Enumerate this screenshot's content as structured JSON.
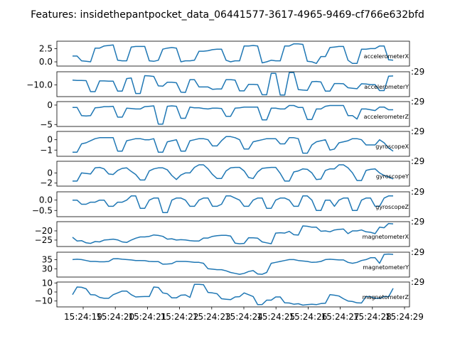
{
  "title": "Features: insidethepantpocket_data_06441577-3617-4965-9469-cf766e632bfd",
  "chart_data": {
    "type": "line",
    "x_tick_labels": [
      "15:24:19",
      "15:24:20",
      "15:24:21",
      "15:24:22",
      "15:24:23",
      "15:24:24",
      "15:24:25",
      "15:24:26",
      "15:24:27",
      "15:24:28",
      "15:24:29"
    ],
    "panels": [
      {
        "name": "accelerometerX",
        "ylim": [
          -0.8,
          3.9
        ],
        "yticks": [
          0.0,
          2.5
        ],
        "yticklabels": [
          "0.0",
          "2.5"
        ],
        "values": [
          1.1,
          1.1,
          0.2,
          0.1,
          0.0,
          2.6,
          2.6,
          3.0,
          3.1,
          3.2,
          0.3,
          0.2,
          0.2,
          2.8,
          2.9,
          2.9,
          2.9,
          0.2,
          0.1,
          0.3,
          2.4,
          2.6,
          2.7,
          2.6,
          0.0,
          0.2,
          0.2,
          0.3,
          2.0,
          2.0,
          2.1,
          2.3,
          2.4,
          2.4,
          0.3,
          0.0,
          0.2,
          0.2,
          3.0,
          3.0,
          3.1,
          3.0,
          -0.2,
          0.0,
          0.3,
          0.2,
          0.2,
          3.0,
          3.0,
          3.4,
          3.4,
          3.3,
          0.1,
          0.0,
          -0.3,
          1.0,
          1.0,
          2.7,
          2.8,
          2.9,
          2.9,
          0.3,
          -0.3,
          -0.3,
          2.4,
          2.4,
          2.5,
          2.5,
          3.0,
          3.0,
          0.4,
          0.3
        ]
      },
      {
        "name": "accelerometerY",
        "ylim": [
          -14.5,
          -5.0
        ],
        "yticks": [
          -10.0
        ],
        "yticklabels": [
          "−10.0"
        ],
        "values": [
          -8.2,
          -8.3,
          -8.3,
          -8.4,
          -12.6,
          -12.6,
          -8.5,
          -8.5,
          -8.6,
          -8.6,
          -12.4,
          -12.4,
          -7.6,
          -7.4,
          -13.3,
          -13.3,
          -6.5,
          -6.6,
          -6.8,
          -10.4,
          -10.5,
          -9.0,
          -9.0,
          -9.2,
          -12.8,
          -12.9,
          -8.0,
          -8.0,
          -10.8,
          -10.8,
          -10.8,
          -11.7,
          -11.6,
          -11.6,
          -8.0,
          -8.0,
          -8.2,
          -12.3,
          -12.3,
          -9.8,
          -9.8,
          -9.9,
          -13.8,
          -13.8,
          -5.6,
          -5.6,
          -13.9,
          -13.9,
          -5.3,
          -5.3,
          -11.8,
          -12.0,
          -12.1,
          -8.8,
          -8.7,
          -8.9,
          -12.4,
          -12.4,
          -9.5,
          -9.5,
          -9.6,
          -11.1,
          -11.3,
          -11.5,
          -9.6,
          -9.7,
          -9.9,
          -9.9,
          -12.2,
          -12.2,
          -6.7,
          -6.6
        ]
      },
      {
        "name": "accelerometerZ",
        "ylim": [
          -5.5,
          0.9
        ],
        "yticks": [
          0,
          -5
        ],
        "yticklabels": [
          "0",
          "−5"
        ],
        "values": [
          -0.6,
          -0.6,
          -2.7,
          -2.8,
          -2.7,
          -0.7,
          -0.6,
          -0.4,
          -0.4,
          -0.3,
          -3.1,
          -3.1,
          -0.8,
          -0.9,
          -1.0,
          -1.0,
          -0.4,
          -0.3,
          -0.2,
          -4.9,
          -4.9,
          -0.3,
          -0.2,
          -0.3,
          -3.4,
          -3.4,
          -0.5,
          -0.7,
          -0.7,
          -0.9,
          -1.0,
          -0.8,
          -0.8,
          -0.9,
          -2.9,
          -2.9,
          -0.8,
          -0.7,
          -0.5,
          -0.5,
          -0.5,
          -0.5,
          -3.8,
          -3.8,
          -0.8,
          -0.8,
          -1.0,
          -1.0,
          -0.1,
          -0.1,
          -0.6,
          -0.6,
          -3.7,
          -3.7,
          -1.0,
          -1.0,
          -0.3,
          -0.1,
          -0.1,
          -0.1,
          -0.1,
          -2.7,
          -2.7,
          -3.6,
          -1.0,
          -1.0,
          -1.2,
          -1.4,
          -0.5,
          -0.5,
          -1.2,
          -1.2
        ]
      },
      {
        "name": "gyroscopeX",
        "ylim": [
          -1.6,
          0.8
        ],
        "yticks": [
          0,
          -1
        ],
        "yticklabels": [
          "0",
          "−1"
        ],
        "values": [
          -1.2,
          -1.2,
          -0.4,
          -0.3,
          -0.1,
          0.1,
          0.2,
          0.2,
          0.2,
          0.2,
          -1.1,
          -1.1,
          -0.1,
          0.0,
          0.1,
          0.1,
          0.0,
          0.0,
          0.1,
          -1.2,
          -1.2,
          -0.2,
          -0.1,
          0.0,
          -1.1,
          -1.1,
          -0.1,
          0.0,
          0.1,
          0.1,
          0.0,
          -0.6,
          -0.6,
          -0.1,
          0.3,
          0.3,
          0.2,
          0.0,
          -0.9,
          -0.9,
          -0.2,
          -0.1,
          0.0,
          0.1,
          0.1,
          0.1,
          -0.4,
          -0.4,
          0.2,
          0.2,
          0.1,
          -1.3,
          -1.3,
          -0.5,
          -0.2,
          -0.1,
          0.0,
          -1.0,
          -0.9,
          -0.3,
          -0.2,
          -0.1,
          0.1,
          0.1,
          0.0,
          -0.5,
          -0.5,
          -0.5,
          0.0,
          -0.3,
          -0.8,
          -1.1
        ]
      },
      {
        "name": "gyroscopeY",
        "ylim": [
          -2.6,
          2.3
        ],
        "yticks": [
          0,
          -2
        ],
        "yticklabels": [
          "0",
          "−2"
        ],
        "values": [
          -1.6,
          -1.6,
          0.0,
          -0.1,
          -0.2,
          1.0,
          1.1,
          0.8,
          -0.2,
          -0.3,
          0.5,
          0.9,
          1.0,
          0.3,
          -0.3,
          -1.4,
          -1.4,
          0.4,
          0.8,
          1.0,
          1.0,
          0.6,
          -0.5,
          -1.3,
          -0.4,
          0.0,
          0.0,
          1.1,
          1.6,
          1.6,
          0.8,
          -0.3,
          -1.1,
          -1.1,
          0.4,
          1.0,
          1.1,
          1.1,
          0.4,
          -0.9,
          -1.1,
          0.2,
          0.9,
          1.0,
          1.1,
          1.1,
          -0.1,
          -1.6,
          -1.6,
          0.2,
          0.4,
          0.8,
          0.7,
          0.0,
          -1.3,
          -1.2,
          0.5,
          0.8,
          0.8,
          1.6,
          1.6,
          1.0,
          0.0,
          -1.5,
          -1.5,
          0.5,
          0.7,
          0.8,
          0.0,
          -0.5,
          -0.8,
          -1.2
        ]
      },
      {
        "name": "gyroscopeZ",
        "ylim": [
          -0.8,
          0.4
        ],
        "yticks": [
          0.0,
          -0.5
        ],
        "yticklabels": [
          "0.0",
          "−0.5"
        ],
        "values": [
          0.0,
          0.0,
          -0.2,
          -0.2,
          -0.1,
          -0.1,
          0.0,
          0.0,
          -0.3,
          -0.3,
          -0.1,
          -0.1,
          0.0,
          0.2,
          0.2,
          -0.4,
          -0.4,
          0.0,
          0.1,
          0.1,
          -0.6,
          -0.6,
          0.0,
          0.1,
          0.1,
          0.0,
          -0.3,
          -0.3,
          0.0,
          0.1,
          0.1,
          -0.3,
          -0.3,
          -0.2,
          0.2,
          0.2,
          0.1,
          0.0,
          -0.3,
          -0.3,
          0.0,
          0.1,
          0.1,
          -0.4,
          -0.4,
          0.0,
          0.1,
          0.1,
          0.0,
          -0.3,
          -0.3,
          0.2,
          0.2,
          0.0,
          -0.5,
          -0.5,
          0.0,
          0.0,
          -0.3,
          0.0,
          0.1,
          0.1,
          -0.5,
          -0.5,
          0.0,
          0.1,
          0.1,
          -0.3,
          -0.3,
          0.1,
          0.2,
          0.2
        ]
      },
      {
        "name": "magnetometerX",
        "ylim": [
          -28.5,
          -15.0
        ],
        "yticks": [
          -20,
          -25
        ],
        "yticklabels": [
          "−20",
          "−25"
        ],
        "values": [
          -23.5,
          -25.5,
          -25.3,
          -26.5,
          -26.8,
          -25.8,
          -26.0,
          -25.0,
          -24.8,
          -24.5,
          -24.9,
          -26.0,
          -26.3,
          -25.0,
          -24.0,
          -23.3,
          -23.3,
          -23.0,
          -22.2,
          -22.5,
          -23.0,
          -24.5,
          -24.3,
          -25.0,
          -24.8,
          -24.9,
          -25.3,
          -25.5,
          -25.5,
          -23.9,
          -23.9,
          -23.0,
          -22.6,
          -22.4,
          -22.4,
          -22.8,
          -26.7,
          -27.0,
          -26.8,
          -23.7,
          -23.8,
          -24.0,
          -26.0,
          -26.5,
          -27.0,
          -21.2,
          -21.0,
          -21.2,
          -20.3,
          -22.1,
          -22.3,
          -17.3,
          -17.5,
          -18.0,
          -18.0,
          -20.2,
          -20.0,
          -20.5,
          -19.5,
          -19.2,
          -19.0,
          -21.5,
          -20.0,
          -20.0,
          -19.5,
          -20.5,
          -20.8,
          -21.5,
          -18.0,
          -18.3,
          -16.0,
          -16.2
        ]
      },
      {
        "name": "magnetometerX_",
        "hidden": true
      },
      {
        "name": "magnetometerY",
        "ylim": [
          25.5,
          39.0
        ],
        "yticks": [
          35,
          30
        ],
        "yticklabels": [
          "35",
          "30"
        ],
        "values": [
          35.0,
          35.2,
          35.0,
          34.5,
          34.0,
          34.0,
          33.8,
          33.8,
          34.0,
          35.4,
          35.5,
          35.2,
          35.0,
          34.8,
          34.5,
          34.5,
          34.4,
          34.0,
          33.9,
          33.9,
          32.5,
          32.6,
          32.8,
          34.0,
          34.0,
          34.0,
          33.8,
          33.5,
          33.5,
          33.0,
          30.0,
          29.8,
          29.5,
          29.5,
          28.9,
          28.0,
          27.5,
          27.0,
          27.5,
          28.5,
          29.0,
          27.2,
          27.0,
          28.0,
          33.0,
          33.5,
          34.0,
          34.5,
          35.0,
          35.0,
          34.5,
          34.2,
          34.0,
          33.5,
          33.6,
          34.0,
          35.0,
          35.2,
          35.0,
          34.8,
          34.8,
          33.5,
          33.0,
          33.5,
          34.5,
          35.0,
          36.0,
          36.0,
          33.0,
          37.8,
          38.0,
          37.8
        ]
      },
      {
        "name": "magnetometerZ",
        "ylim": [
          -16.5,
          11.0
        ],
        "yticks": [
          10,
          0,
          -10
        ],
        "yticklabels": [
          "10",
          "0",
          "−10"
        ],
        "values": [
          -3.0,
          5.5,
          5.2,
          3.5,
          -3.0,
          -3.2,
          -6.0,
          -7.0,
          -7.0,
          -3.0,
          -1.0,
          1.0,
          1.0,
          -3.0,
          -5.5,
          -5.2,
          -5.0,
          -5.0,
          5.5,
          5.0,
          -1.0,
          -2.0,
          -6.5,
          -6.5,
          -3.5,
          -3.2,
          -6.0,
          8.5,
          8.5,
          8.0,
          -0.5,
          -1.0,
          -2.0,
          -7.5,
          -8.0,
          -8.5,
          -5.5,
          -5.2,
          -1.0,
          -3.0,
          -5.0,
          -14.0,
          -13.8,
          -9.0,
          -9.0,
          -5.5,
          -5.5,
          -12.0,
          -12.2,
          -13.5,
          -13.0,
          -14.5,
          -14.0,
          -13.5,
          -14.0,
          -12.8,
          -12.5,
          -3.0,
          -3.5,
          -4.5,
          -7.5,
          -10.0,
          -10.5,
          -12.0,
          -12.2,
          -5.0,
          -5.3,
          -7.0,
          -7.0,
          -5.0,
          -5.2,
          4.0
        ]
      }
    ]
  },
  "clipped_label_text": ":29"
}
